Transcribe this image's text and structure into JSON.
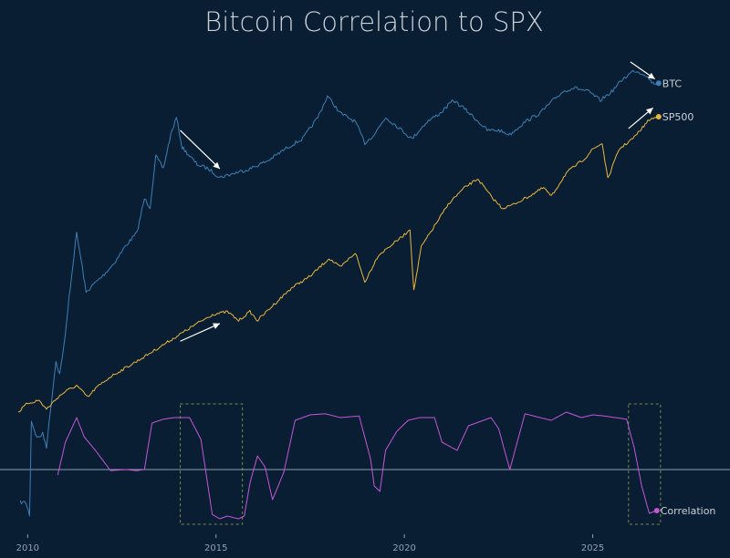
{
  "chart_data": {
    "type": "line",
    "title": "Bitcoin Correlation to SPX",
    "xlabel": "",
    "ylabel": "",
    "x_ticks": [
      "2010",
      "2015",
      "2020",
      "2025"
    ],
    "x_range": [
      2009.75,
      2026.9
    ],
    "grid": false,
    "legend": "end-labels",
    "zero_line": true,
    "colors": {
      "background": "#0a1e33",
      "btc": "#3d7fb5",
      "sp500": "#e8b63a",
      "correlation": "#c455d8",
      "zero_line": "#8aa0b4",
      "highlight_box": "#7a8a4a",
      "arrow": "#ffffff"
    },
    "series": [
      {
        "name": "BTC",
        "axis": "normalized log price (0-1)",
        "x": [
          2009.8,
          2009.95,
          2010.05,
          2010.1,
          2010.25,
          2010.4,
          2010.5,
          2010.6,
          2010.75,
          2010.85,
          2011.0,
          2011.1,
          2011.3,
          2011.45,
          2011.55,
          2011.75,
          2012.0,
          2012.3,
          2012.6,
          2012.9,
          2013.1,
          2013.25,
          2013.4,
          2013.6,
          2013.8,
          2013.95,
          2014.1,
          2014.3,
          2014.5,
          2014.8,
          2015.1,
          2015.5,
          2015.9,
          2016.4,
          2016.9,
          2017.3,
          2017.7,
          2017.96,
          2018.3,
          2018.7,
          2018.95,
          2019.2,
          2019.5,
          2019.8,
          2020.2,
          2020.6,
          2020.95,
          2021.3,
          2021.6,
          2021.85,
          2022.2,
          2022.5,
          2022.8,
          2023.2,
          2023.6,
          2023.95,
          2024.2,
          2024.5,
          2024.9,
          2025.2,
          2025.5,
          2025.8,
          2026.1,
          2026.4,
          2026.6,
          2026.75
        ],
        "values": [
          0.03,
          0.03,
          0.0,
          0.22,
          0.18,
          0.19,
          0.16,
          0.24,
          0.36,
          0.33,
          0.42,
          0.51,
          0.66,
          0.58,
          0.52,
          0.54,
          0.56,
          0.59,
          0.63,
          0.66,
          0.74,
          0.72,
          0.84,
          0.81,
          0.89,
          0.93,
          0.86,
          0.84,
          0.82,
          0.81,
          0.79,
          0.8,
          0.81,
          0.83,
          0.86,
          0.88,
          0.93,
          0.98,
          0.94,
          0.92,
          0.87,
          0.89,
          0.93,
          0.91,
          0.88,
          0.92,
          0.94,
          0.97,
          0.95,
          0.93,
          0.9,
          0.9,
          0.89,
          0.92,
          0.94,
          0.97,
          0.99,
          1.0,
          0.99,
          0.97,
          0.99,
          1.02,
          1.04,
          1.03,
          1.01,
          1.01
        ]
      },
      {
        "name": "SP500",
        "axis": "normalized log price (0-1)",
        "x": [
          2009.75,
          2010.0,
          2010.3,
          2010.5,
          2010.8,
          2011.0,
          2011.3,
          2011.6,
          2011.8,
          2012.2,
          2012.6,
          2013.0,
          2013.5,
          2014.0,
          2014.5,
          2014.9,
          2015.3,
          2015.6,
          2015.9,
          2016.1,
          2016.5,
          2017.0,
          2017.5,
          2018.0,
          2018.3,
          2018.7,
          2018.95,
          2019.3,
          2019.6,
          2020.0,
          2020.15,
          2020.25,
          2020.45,
          2020.8,
          2021.2,
          2021.6,
          2021.95,
          2022.3,
          2022.6,
          2022.85,
          2023.3,
          2023.7,
          2023.9,
          2024.3,
          2024.8,
          2025.0,
          2025.25,
          2025.4,
          2025.7,
          2026.1,
          2026.5,
          2026.75
        ],
        "values": [
          0.0,
          0.03,
          0.04,
          0.01,
          0.05,
          0.07,
          0.09,
          0.05,
          0.08,
          0.12,
          0.15,
          0.18,
          0.22,
          0.26,
          0.3,
          0.33,
          0.34,
          0.31,
          0.34,
          0.31,
          0.36,
          0.42,
          0.46,
          0.52,
          0.49,
          0.54,
          0.44,
          0.53,
          0.56,
          0.6,
          0.62,
          0.41,
          0.56,
          0.63,
          0.71,
          0.76,
          0.79,
          0.73,
          0.69,
          0.7,
          0.73,
          0.76,
          0.73,
          0.81,
          0.86,
          0.89,
          0.91,
          0.79,
          0.89,
          0.93,
          0.99,
          1.0
        ]
      },
      {
        "name": "Correlation",
        "axis": "rolling correlation",
        "x": [
          2010.8,
          2011.0,
          2011.3,
          2011.5,
          2011.8,
          2012.2,
          2012.6,
          2012.9,
          2013.1,
          2013.3,
          2013.6,
          2013.9,
          2014.3,
          2014.6,
          2014.9,
          2015.1,
          2015.3,
          2015.6,
          2015.75,
          2015.9,
          2016.1,
          2016.3,
          2016.5,
          2016.8,
          2017.1,
          2017.5,
          2017.9,
          2018.3,
          2018.8,
          2019.1,
          2019.2,
          2019.35,
          2019.5,
          2019.8,
          2020.1,
          2020.4,
          2020.8,
          2021.0,
          2021.4,
          2021.7,
          2022.1,
          2022.3,
          2022.5,
          2022.8,
          2023.2,
          2023.6,
          2023.9,
          2024.3,
          2024.7,
          2025.0,
          2025.3,
          2025.6,
          2025.9,
          2026.1,
          2026.3,
          2026.5,
          2026.7
        ],
        "values": [
          -0.1,
          0.5,
          0.95,
          0.6,
          0.35,
          -0.02,
          0.0,
          -0.02,
          0.0,
          0.85,
          0.92,
          0.95,
          0.95,
          0.55,
          -0.82,
          -0.9,
          -0.85,
          -0.9,
          -0.85,
          -0.25,
          0.25,
          0.05,
          -0.55,
          -0.05,
          0.9,
          1.0,
          1.02,
          0.95,
          0.98,
          0.2,
          -0.3,
          -0.4,
          0.35,
          0.7,
          0.9,
          0.95,
          0.95,
          0.5,
          0.35,
          0.8,
          0.9,
          0.95,
          0.75,
          0.0,
          1.02,
          0.95,
          0.9,
          1.05,
          0.95,
          1.0,
          0.98,
          0.95,
          0.92,
          0.4,
          -0.3,
          -0.8,
          -0.75
        ]
      }
    ],
    "highlight_boxes": [
      {
        "x_range": [
          2014.05,
          2015.7
        ],
        "y_range": [
          -1.0,
          1.2
        ]
      },
      {
        "x_range": [
          2025.95,
          2026.8
        ],
        "y_range": [
          -1.0,
          1.2
        ]
      }
    ],
    "arrows": [
      {
        "series": "BTC",
        "from": [
          2014.05,
          0.9
        ],
        "to": [
          2015.1,
          0.81
        ]
      },
      {
        "series": "SP500",
        "from": [
          2014.05,
          0.24
        ],
        "to": [
          2015.1,
          0.3
        ]
      },
      {
        "series": "BTC",
        "from": [
          2026.0,
          1.06
        ],
        "to": [
          2026.65,
          1.02
        ]
      },
      {
        "series": "SP500",
        "from": [
          2025.95,
          0.96
        ],
        "to": [
          2026.6,
          1.03
        ]
      }
    ]
  }
}
